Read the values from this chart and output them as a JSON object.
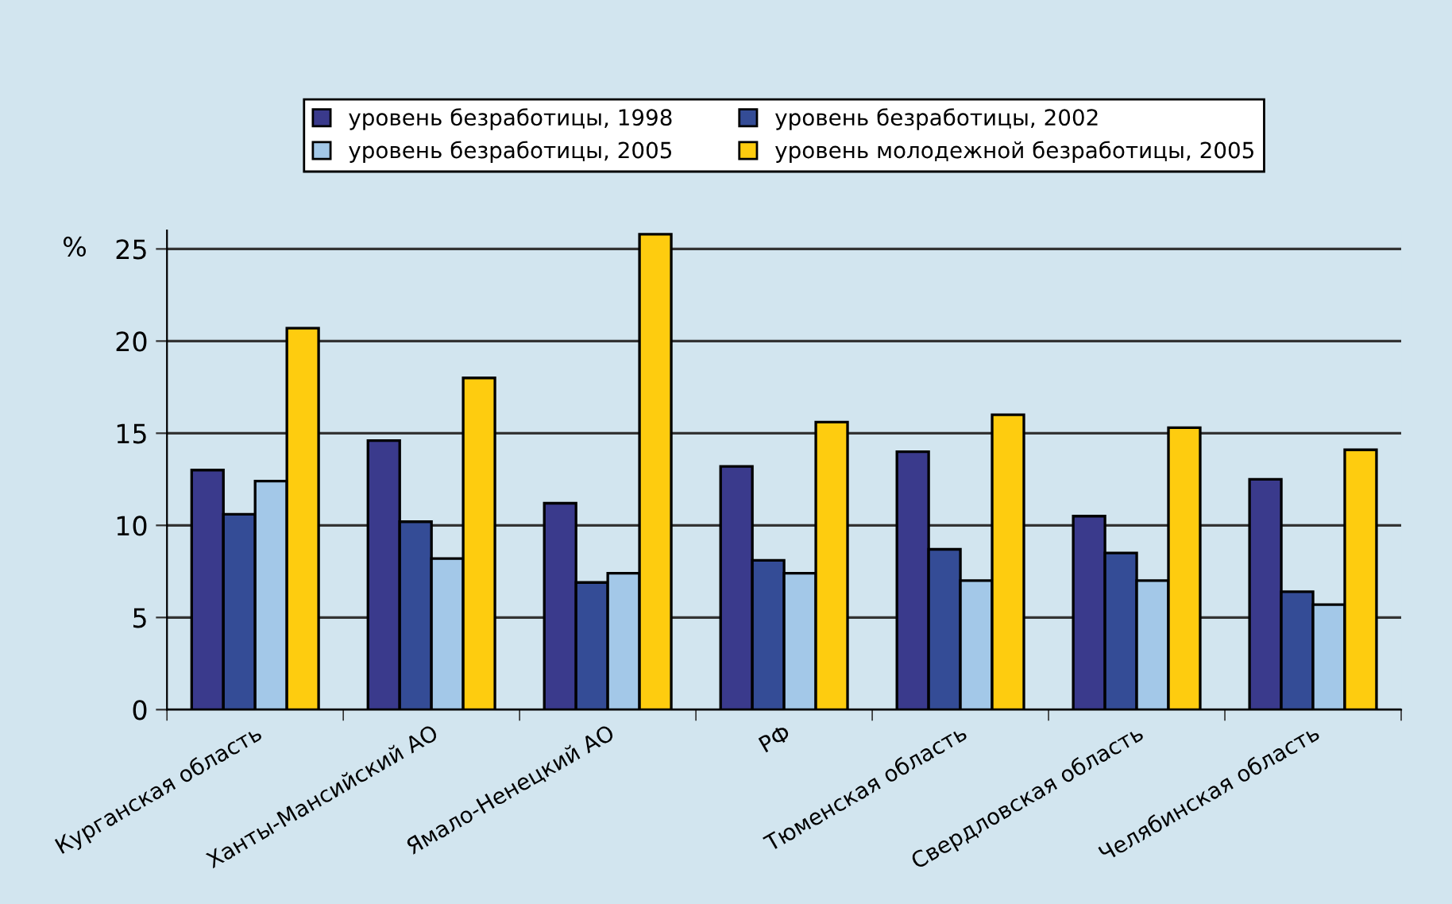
{
  "chart_data": {
    "type": "bar",
    "ylabel": "%",
    "categories": [
      "Курганская область",
      "Ханты-Мансийский АО",
      "Ямало-Ненецкий АО",
      "РФ",
      "Тюменская область",
      "Свердловская область",
      "Челябинская область"
    ],
    "series": [
      {
        "name": "уровень безработицы, 1998",
        "color": "#3a3a8c",
        "values": [
          13.0,
          14.6,
          11.2,
          13.2,
          14.0,
          10.5,
          12.5
        ]
      },
      {
        "name": "уровень безработицы, 2002",
        "color": "#344c96",
        "values": [
          10.6,
          10.2,
          6.9,
          8.1,
          8.7,
          8.5,
          6.4
        ]
      },
      {
        "name": "уровень безработицы, 2005",
        "color": "#a3c8e8",
        "values": [
          12.4,
          8.2,
          7.4,
          7.4,
          7.0,
          7.0,
          5.7
        ]
      },
      {
        "name": "уровень молодежной безработицы, 2005",
        "color": "#fecc0f",
        "values": [
          20.7,
          18.0,
          25.8,
          15.6,
          16.0,
          15.3,
          14.1
        ]
      }
    ],
    "ylim": [
      0,
      26
    ],
    "yticks": [
      0,
      5,
      10,
      15,
      20,
      25
    ],
    "grid": "y",
    "legend": "top"
  }
}
